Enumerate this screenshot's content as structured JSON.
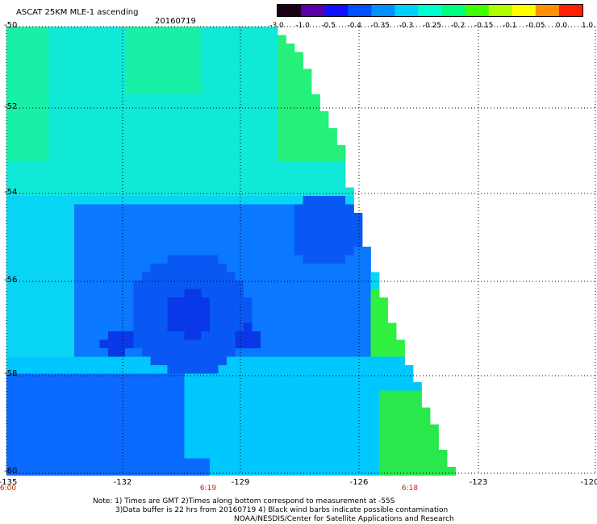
{
  "header": {
    "title": "ASCAT 25KM MLE-1 ascending",
    "date": "20160719"
  },
  "colorbar": {
    "labels": [
      "-3.0",
      "-1.0",
      "-0.5",
      "-0.4",
      "-0.35",
      "-0.3",
      "-0.25",
      "-0.2",
      "-0.15",
      "-0.1",
      "-0.05",
      "0.0",
      "1.0"
    ],
    "colors": [
      "#1a0015",
      "#5a00a8",
      "#1010ff",
      "#0050ff",
      "#0090ff",
      "#00d0ff",
      "#00ffd0",
      "#00ff80",
      "#40ff00",
      "#b0ff00",
      "#ffff00",
      "#ff9000",
      "#ff2000"
    ]
  },
  "axes": {
    "lat_labels": [
      "-50",
      "-52",
      "-54",
      "-56",
      "-58",
      "-60"
    ],
    "lon_labels": [
      "-135",
      "-132",
      "-129",
      "-126",
      "-123",
      "-120"
    ]
  },
  "times": [
    "6:00",
    "6:19",
    "6:18"
  ],
  "notes": {
    "line1": "Note: 1) Times are GMT 2)Times along bottom correspond to measurement at -55S",
    "line2": "3)Data buffer is 22 hrs from 20160719 4) Black wind barbs indicate possible contamination",
    "line3": "NOAA/NESDIS/Center for Satellite Applications and Research"
  }
}
